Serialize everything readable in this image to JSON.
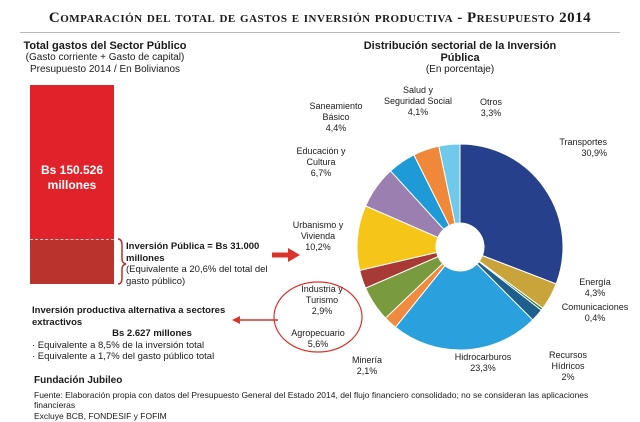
{
  "title": "Comparación del total de gastos e inversión productiva - Presupuesto 2014",
  "left_panel": {
    "heading": "Total gastos del Sector Público",
    "subheading1": "(Gasto corriente + Gasto de capital)",
    "subheading2": "Presupuesto 2014 / En Bolivianos",
    "bar_label_line1": "Bs 150.526",
    "bar_label_line2": "millones",
    "investment_label": "Inversión Pública = Bs 31.000 millones",
    "investment_note": "(Equivalente a 20,6% del total del gasto público)",
    "alt_title": "Inversión productiva alternativa a sectores extractivos",
    "alt_amount": "Bs 2.627 millones",
    "alt_bullet1": "· Equivalente a 8,5% de la inversión total",
    "alt_bullet2": "· Equivalente a 1,7% del gasto público total"
  },
  "pie_panel": {
    "heading": "Distribución sectorial de la Inversión Pública",
    "subheading": "(En porcentaje)"
  },
  "source": {
    "org": "Fundación Jubileo",
    "line1": "Fuente: Elaboración propia con datos del Presupuesto General del Estado 2014, del flujo financiero consolidado; no se consideran las aplicaciones financieras",
    "line2": "Excluye BCB, FONDESIF y FOFIM"
  },
  "chart_data": [
    {
      "type": "bar",
      "categories": [
        "Total gastos del Sector Público",
        "Inversión Pública"
      ],
      "values": [
        150526,
        31000
      ],
      "unit": "Bs millones",
      "annotations": [
        "Bs 150.526 millones",
        "Inversión Pública = Bs 31.000 millones"
      ]
    },
    {
      "type": "pie",
      "title": "Distribución sectorial de la Inversión Pública",
      "subtitle": "(En porcentaje)",
      "slices": [
        {
          "label": [
            "Transportes"
          ],
          "value": 30.9,
          "value_text": "30,9%",
          "color": "#27408b"
        },
        {
          "label": [
            "Energía"
          ],
          "value": 4.3,
          "value_text": "4,3%",
          "color": "#c9a43a"
        },
        {
          "label": [
            "Comunicaciones"
          ],
          "value": 0.4,
          "value_text": "0,4%",
          "color": "#2e7d32"
        },
        {
          "label": [
            "Recursos",
            "Hídricos"
          ],
          "value": 2.0,
          "value_text": "2%",
          "color": "#1f5f8b"
        },
        {
          "label": [
            "Hidrocarburos"
          ],
          "value": 23.3,
          "value_text": "23,3%",
          "color": "#2aa0dc"
        },
        {
          "label": [
            "Minería"
          ],
          "value": 2.1,
          "value_text": "2,1%",
          "color": "#ef8a3e"
        },
        {
          "label": [
            "Agropecuario"
          ],
          "value": 5.6,
          "value_text": "5,6%",
          "color": "#7a9a3e"
        },
        {
          "label": [
            "Industria y",
            "Turismo"
          ],
          "value": 2.9,
          "value_text": "2,9%",
          "color": "#a83a36"
        },
        {
          "label": [
            "Urbanismo y",
            "Vivienda"
          ],
          "value": 10.2,
          "value_text": "10,2%",
          "color": "#f5c518"
        },
        {
          "label": [
            "Educación y",
            "Cultura"
          ],
          "value": 6.7,
          "value_text": "6,7%",
          "color": "#9a7fb0"
        },
        {
          "label": [
            "Saneamiento",
            "Básico"
          ],
          "value": 4.4,
          "value_text": "4,4%",
          "color": "#1e9bd7"
        },
        {
          "label": [
            "Salud y",
            "Seguridad Social"
          ],
          "value": 4.1,
          "value_text": "4,1%",
          "color": "#f0883a"
        },
        {
          "label": [
            "Otros"
          ],
          "value": 3.3,
          "value_text": "3,3%",
          "color": "#6fc9ea"
        }
      ]
    }
  ],
  "colors": {
    "bar_total": "#e0232a",
    "bar_investment": "#b8342c",
    "arrow": "#d9342b",
    "ellipse": "#d9342b"
  }
}
